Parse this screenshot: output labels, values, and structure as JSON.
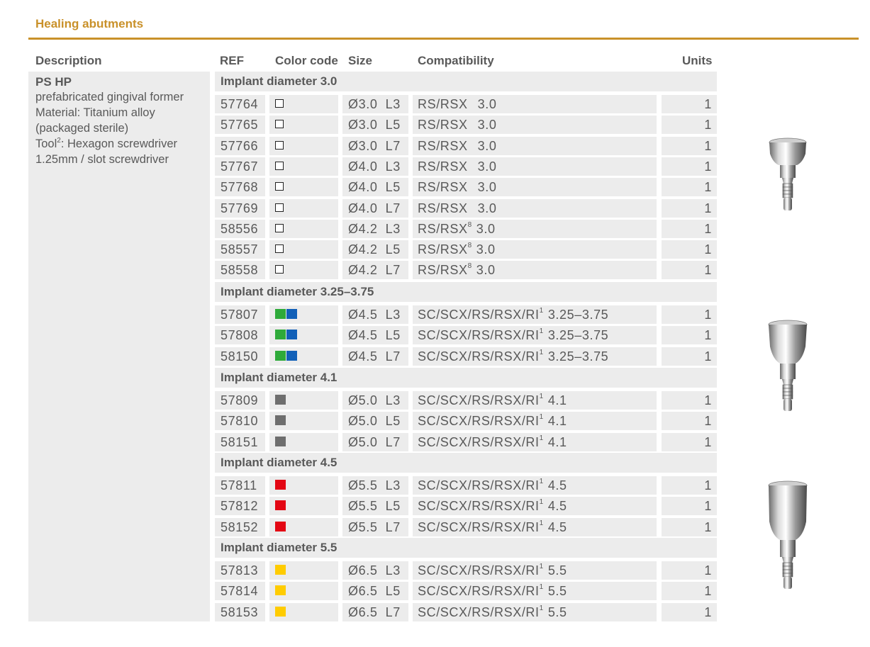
{
  "section_title": "Healing abutments",
  "headers": {
    "description": "Description",
    "ref": "REF",
    "color_code": "Color code",
    "size": "Size",
    "compatibility": "Compatibility",
    "units": "Units"
  },
  "description": {
    "title": "PS HP",
    "line1": "prefabricated gingival former",
    "line2": "Material: Titanium alloy",
    "line3": "(packaged sterile)",
    "tool_prefix": "Tool",
    "tool_sup": "2",
    "tool_rest": ": Hexagon screwdriver",
    "line5": "1.25mm / slot screwdriver"
  },
  "colors": {
    "accent": "#C9912A",
    "cell_bg": "#ececec",
    "green": "#2EAA3A",
    "blue": "#1160B8",
    "gray": "#6E6E6E",
    "red": "#E30613",
    "yellow": "#FFCC00"
  },
  "groups": [
    {
      "label": "Implant diameter 3.0",
      "rows": [
        {
          "ref": "57764",
          "color": [
            "white"
          ],
          "size": "Ø3.0  L3",
          "comp": "RS/RSX",
          "sup": "",
          "comp_val": "3.0",
          "units": "1"
        },
        {
          "ref": "57765",
          "color": [
            "white"
          ],
          "size": "Ø3.0  L5",
          "comp": "RS/RSX",
          "sup": "",
          "comp_val": "3.0",
          "units": "1"
        },
        {
          "ref": "57766",
          "color": [
            "white"
          ],
          "size": "Ø3.0  L7",
          "comp": "RS/RSX",
          "sup": "",
          "comp_val": "3.0",
          "units": "1"
        },
        {
          "ref": "57767",
          "color": [
            "white"
          ],
          "size": "Ø4.0  L3",
          "comp": "RS/RSX",
          "sup": "",
          "comp_val": "3.0",
          "units": "1"
        },
        {
          "ref": "57768",
          "color": [
            "white"
          ],
          "size": "Ø4.0  L5",
          "comp": "RS/RSX",
          "sup": "",
          "comp_val": "3.0",
          "units": "1"
        },
        {
          "ref": "57769",
          "color": [
            "white"
          ],
          "size": "Ø4.0  L7",
          "comp": "RS/RSX",
          "sup": "",
          "comp_val": "3.0",
          "units": "1"
        },
        {
          "ref": "58556",
          "color": [
            "white"
          ],
          "size": "Ø4.2  L3",
          "comp": "RS/RSX",
          "sup": "8",
          "comp_val": "3.0",
          "units": "1"
        },
        {
          "ref": "58557",
          "color": [
            "white"
          ],
          "size": "Ø4.2  L5",
          "comp": "RS/RSX",
          "sup": "8",
          "comp_val": "3.0",
          "units": "1"
        },
        {
          "ref": "58558",
          "color": [
            "white"
          ],
          "size": "Ø4.2  L7",
          "comp": "RS/RSX",
          "sup": "8",
          "comp_val": "3.0",
          "units": "1"
        }
      ]
    },
    {
      "label": "Implant diameter 3.25–3.75",
      "rows": [
        {
          "ref": "57807",
          "color": [
            "green",
            "blue"
          ],
          "size": "Ø4.5  L3",
          "comp": "SC/SCX/RS/RSX/RI",
          "sup": "1",
          "comp_val": "3.25–3.75",
          "units": "1"
        },
        {
          "ref": "57808",
          "color": [
            "green",
            "blue"
          ],
          "size": "Ø4.5  L5",
          "comp": "SC/SCX/RS/RSX/RI",
          "sup": "1",
          "comp_val": "3.25–3.75",
          "units": "1"
        },
        {
          "ref": "58150",
          "color": [
            "green",
            "blue"
          ],
          "size": "Ø4.5  L7",
          "comp": "SC/SCX/RS/RSX/RI",
          "sup": "1",
          "comp_val": "3.25–3.75",
          "units": "1"
        }
      ]
    },
    {
      "label": "Implant diameter 4.1",
      "rows": [
        {
          "ref": "57809",
          "color": [
            "gray"
          ],
          "size": "Ø5.0  L3",
          "comp": "SC/SCX/RS/RSX/RI",
          "sup": "1",
          "comp_val": "4.1",
          "units": "1"
        },
        {
          "ref": "57810",
          "color": [
            "gray"
          ],
          "size": "Ø5.0  L5",
          "comp": "SC/SCX/RS/RSX/RI",
          "sup": "1",
          "comp_val": "4.1",
          "units": "1"
        },
        {
          "ref": "58151",
          "color": [
            "gray"
          ],
          "size": "Ø5.0  L7",
          "comp": "SC/SCX/RS/RSX/RI",
          "sup": "1",
          "comp_val": "4.1",
          "units": "1"
        }
      ]
    },
    {
      "label": "Implant diameter 4.5",
      "rows": [
        {
          "ref": "57811",
          "color": [
            "red"
          ],
          "size": "Ø5.5  L3",
          "comp": "SC/SCX/RS/RSX/RI",
          "sup": "1",
          "comp_val": "4.5",
          "units": "1"
        },
        {
          "ref": "57812",
          "color": [
            "red"
          ],
          "size": "Ø5.5  L5",
          "comp": "SC/SCX/RS/RSX/RI",
          "sup": "1",
          "comp_val": "4.5",
          "units": "1"
        },
        {
          "ref": "58152",
          "color": [
            "red"
          ],
          "size": "Ø5.5  L7",
          "comp": "SC/SCX/RS/RSX/RI",
          "sup": "1",
          "comp_val": "4.5",
          "units": "1"
        }
      ]
    },
    {
      "label": "Implant diameter 5.5",
      "rows": [
        {
          "ref": "57813",
          "color": [
            "yellow"
          ],
          "size": "Ø6.5  L3",
          "comp": "SC/SCX/RS/RSX/RI",
          "sup": "1",
          "comp_val": "5.5",
          "units": "1"
        },
        {
          "ref": "57814",
          "color": [
            "yellow"
          ],
          "size": "Ø6.5  L5",
          "comp": "SC/SCX/RS/RSX/RI",
          "sup": "1",
          "comp_val": "5.5",
          "units": "1"
        },
        {
          "ref": "58153",
          "color": [
            "yellow"
          ],
          "size": "Ø6.5  L7",
          "comp": "SC/SCX/RS/RSX/RI",
          "sup": "1",
          "comp_val": "5.5",
          "units": "1"
        }
      ]
    }
  ]
}
